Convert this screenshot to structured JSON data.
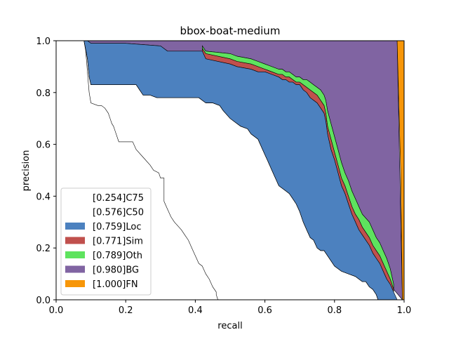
{
  "chart_data": {
    "type": "area",
    "title": "bbox-boat-medium",
    "xlabel": "recall",
    "ylabel": "precision",
    "xlim": [
      0,
      1
    ],
    "ylim": [
      0,
      1
    ],
    "xticks": [
      "0.0",
      "0.2",
      "0.4",
      "0.6",
      "0.8",
      "1.0"
    ],
    "yticks": [
      "0.0",
      "0.2",
      "0.4",
      "0.6",
      "0.8",
      "1.0"
    ],
    "legend_position": "lower-left",
    "legend": [
      {
        "label": "[0.254]C75",
        "color": "#ffffff"
      },
      {
        "label": "[0.576]C50",
        "color": "#ffffff"
      },
      {
        "label": "[0.759]Loc",
        "color": "#4c81bf"
      },
      {
        "label": "[0.771]Sim",
        "color": "#c0504d"
      },
      {
        "label": "[0.789]Oth",
        "color": "#5ee35e"
      },
      {
        "label": "[0.980]BG",
        "color": "#8064a2"
      },
      {
        "label": "[1.000]FN",
        "color": "#f79608"
      }
    ],
    "series": [
      {
        "name": "[0.254]C75",
        "color": "#ffffff",
        "x": [
          0.08,
          0.085,
          0.09,
          0.095,
          0.1,
          0.12,
          0.13,
          0.14,
          0.15,
          0.155,
          0.16,
          0.165,
          0.17,
          0.18,
          0.22,
          0.23,
          0.25,
          0.27,
          0.28,
          0.295,
          0.3,
          0.31,
          0.31,
          0.32,
          0.33,
          0.34,
          0.36,
          0.37,
          0.38,
          0.39,
          0.4,
          0.41,
          0.42,
          0.43,
          0.44,
          0.45,
          0.46,
          0.46,
          0.465
        ],
        "y": [
          1.0,
          0.96,
          0.88,
          0.8,
          0.76,
          0.75,
          0.75,
          0.74,
          0.72,
          0.7,
          0.68,
          0.67,
          0.65,
          0.61,
          0.61,
          0.58,
          0.55,
          0.52,
          0.5,
          0.49,
          0.47,
          0.47,
          0.38,
          0.35,
          0.32,
          0.3,
          0.27,
          0.25,
          0.23,
          0.2,
          0.17,
          0.14,
          0.13,
          0.1,
          0.08,
          0.05,
          0.03,
          0.02,
          0.0
        ]
      },
      {
        "name": "[0.576]C50",
        "color": "#ffffff",
        "x": [
          0.08,
          0.09,
          0.095,
          0.1,
          0.23,
          0.24,
          0.25,
          0.27,
          0.29,
          0.32,
          0.34,
          0.41,
          0.42,
          0.43,
          0.44,
          0.45,
          0.47,
          0.48,
          0.5,
          0.52,
          0.53,
          0.55,
          0.56,
          0.58,
          0.59,
          0.6,
          0.61,
          0.62,
          0.63,
          0.64,
          0.65,
          0.66,
          0.67,
          0.68,
          0.69,
          0.7,
          0.71,
          0.72,
          0.73,
          0.74,
          0.75,
          0.76,
          0.77,
          0.78,
          0.79,
          0.8,
          0.82,
          0.84,
          0.86,
          0.88,
          0.89,
          0.9,
          0.91,
          0.92,
          0.925
        ],
        "y": [
          1.0,
          0.93,
          0.86,
          0.83,
          0.83,
          0.81,
          0.79,
          0.79,
          0.78,
          0.78,
          0.78,
          0.78,
          0.77,
          0.76,
          0.76,
          0.76,
          0.75,
          0.73,
          0.7,
          0.68,
          0.67,
          0.66,
          0.64,
          0.62,
          0.59,
          0.56,
          0.53,
          0.5,
          0.47,
          0.44,
          0.43,
          0.42,
          0.41,
          0.39,
          0.37,
          0.34,
          0.3,
          0.27,
          0.24,
          0.23,
          0.2,
          0.19,
          0.19,
          0.17,
          0.15,
          0.13,
          0.11,
          0.1,
          0.09,
          0.07,
          0.07,
          0.05,
          0.04,
          0.02,
          0.0
        ]
      },
      {
        "name": "[0.759]Loc",
        "color": "#4c81bf",
        "x": [
          0.1,
          0.2,
          0.3,
          0.32,
          0.42,
          0.43,
          0.5,
          0.52,
          0.56,
          0.58,
          0.6,
          0.62,
          0.64,
          0.65,
          0.66,
          0.67,
          0.68,
          0.69,
          0.7,
          0.71,
          0.72,
          0.73,
          0.74,
          0.75,
          0.76,
          0.77,
          0.775,
          0.78,
          0.79,
          0.8,
          0.81,
          0.82,
          0.83,
          0.84,
          0.85,
          0.86,
          0.87,
          0.88,
          0.9,
          0.91,
          0.92,
          0.93,
          0.94,
          0.95,
          0.96,
          0.97,
          0.98
        ],
        "y": [
          0.99,
          0.99,
          0.98,
          0.96,
          0.96,
          0.93,
          0.91,
          0.9,
          0.89,
          0.88,
          0.88,
          0.87,
          0.86,
          0.85,
          0.85,
          0.84,
          0.84,
          0.83,
          0.83,
          0.81,
          0.8,
          0.78,
          0.77,
          0.76,
          0.74,
          0.72,
          0.69,
          0.64,
          0.58,
          0.54,
          0.49,
          0.44,
          0.41,
          0.37,
          0.33,
          0.3,
          0.27,
          0.25,
          0.21,
          0.18,
          0.16,
          0.14,
          0.11,
          0.08,
          0.06,
          0.03,
          0.0
        ]
      },
      {
        "name": "[0.771]Sim",
        "color": "#c0504d",
        "x": [
          0.42,
          0.43,
          0.5,
          0.52,
          0.56,
          0.58,
          0.6,
          0.62,
          0.64,
          0.65,
          0.66,
          0.67,
          0.68,
          0.69,
          0.7,
          0.71,
          0.72,
          0.73,
          0.74,
          0.75,
          0.76,
          0.77,
          0.775,
          0.78,
          0.79,
          0.8,
          0.81,
          0.82,
          0.83,
          0.84,
          0.85,
          0.86,
          0.87,
          0.88,
          0.9,
          0.91,
          0.92,
          0.93,
          0.94,
          0.95,
          0.96,
          0.97
        ],
        "y": [
          0.97,
          0.95,
          0.93,
          0.92,
          0.91,
          0.9,
          0.89,
          0.88,
          0.87,
          0.87,
          0.86,
          0.86,
          0.85,
          0.84,
          0.84,
          0.83,
          0.82,
          0.81,
          0.8,
          0.79,
          0.77,
          0.75,
          0.72,
          0.67,
          0.62,
          0.57,
          0.52,
          0.47,
          0.44,
          0.4,
          0.36,
          0.33,
          0.31,
          0.28,
          0.24,
          0.21,
          0.19,
          0.17,
          0.14,
          0.11,
          0.08,
          0.04
        ]
      },
      {
        "name": "[0.789]Oth",
        "color": "#5ee35e",
        "x": [
          0.42,
          0.43,
          0.5,
          0.52,
          0.56,
          0.58,
          0.6,
          0.62,
          0.64,
          0.65,
          0.66,
          0.67,
          0.68,
          0.69,
          0.7,
          0.71,
          0.72,
          0.73,
          0.74,
          0.75,
          0.76,
          0.77,
          0.775,
          0.78,
          0.79,
          0.8,
          0.81,
          0.82,
          0.83,
          0.84,
          0.85,
          0.86,
          0.87,
          0.88,
          0.9,
          0.91,
          0.92,
          0.93,
          0.94,
          0.95,
          0.96,
          0.97
        ],
        "y": [
          0.98,
          0.96,
          0.95,
          0.94,
          0.93,
          0.92,
          0.91,
          0.9,
          0.89,
          0.89,
          0.88,
          0.88,
          0.87,
          0.86,
          0.86,
          0.85,
          0.85,
          0.84,
          0.83,
          0.82,
          0.81,
          0.79,
          0.77,
          0.73,
          0.68,
          0.63,
          0.58,
          0.53,
          0.49,
          0.46,
          0.42,
          0.39,
          0.36,
          0.33,
          0.3,
          0.27,
          0.24,
          0.22,
          0.19,
          0.16,
          0.12,
          0.06
        ]
      },
      {
        "name": "[0.980]BG",
        "color": "#8064a2",
        "x": [
          0.09,
          0.98
        ],
        "y": [
          1.0,
          1.0
        ]
      },
      {
        "name": "[1.000]FN",
        "color": "#f79608",
        "x": [
          0.98,
          1.0
        ],
        "y": [
          1.0,
          1.0
        ]
      }
    ]
  }
}
